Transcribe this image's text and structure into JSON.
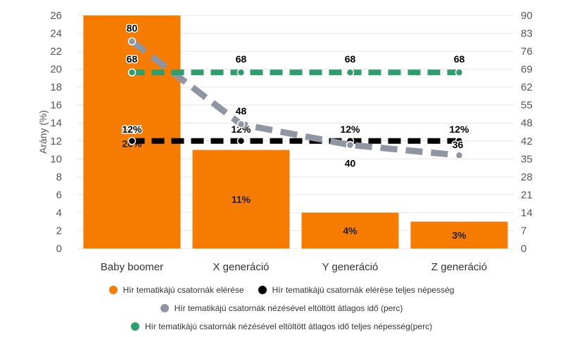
{
  "chart_data": {
    "type": "bar",
    "categories": [
      "Baby boomer",
      "X generáció",
      "Y generáció",
      "Z generáció"
    ],
    "ylabel": "Arány (%)",
    "ylim": [
      0,
      26
    ],
    "y2lim": [
      0,
      90
    ],
    "y_ticks": [
      "0",
      "2",
      "4",
      "6",
      "8",
      "10",
      "12",
      "14",
      "16",
      "18",
      "20",
      "22",
      "24",
      "26"
    ],
    "y2_ticks": [
      "0",
      "7",
      "14",
      "21",
      "28",
      "35",
      "42",
      "48",
      "55",
      "62",
      "69",
      "76",
      "83",
      "90"
    ],
    "grid": true,
    "legend_position": "bottom",
    "series": [
      {
        "name": "Hír tematikájú csatornák elérése",
        "kind": "bar",
        "axis": "left",
        "color": "#f57c00",
        "values": [
          26,
          11,
          4,
          3
        ],
        "labels": [
          "26%",
          "11%",
          "4%",
          "3%"
        ]
      },
      {
        "name": "Hír tematikájú csatornák elérése teljes népesség",
        "kind": "line",
        "axis": "left",
        "color": "#000000",
        "values": [
          12,
          12,
          12,
          12
        ],
        "labels": [
          "12%",
          "12%",
          "12%",
          "12%"
        ]
      },
      {
        "name": "Hír tematikájú csatornák nézésével eltöltött átlagos idő (perc)",
        "kind": "line",
        "axis": "right",
        "color": "#8f96a1",
        "values": [
          80,
          48,
          40,
          36
        ],
        "labels": [
          "80",
          "48",
          "40",
          "36"
        ]
      },
      {
        "name": "Hír tematikájú csatornák nézésével eltöltött átlagos idő teljes népesség(perc)",
        "kind": "line",
        "axis": "right",
        "color": "#2e9e6e",
        "values": [
          68,
          68,
          68,
          68
        ],
        "labels": [
          "68",
          "68",
          "68",
          "68"
        ]
      }
    ]
  }
}
